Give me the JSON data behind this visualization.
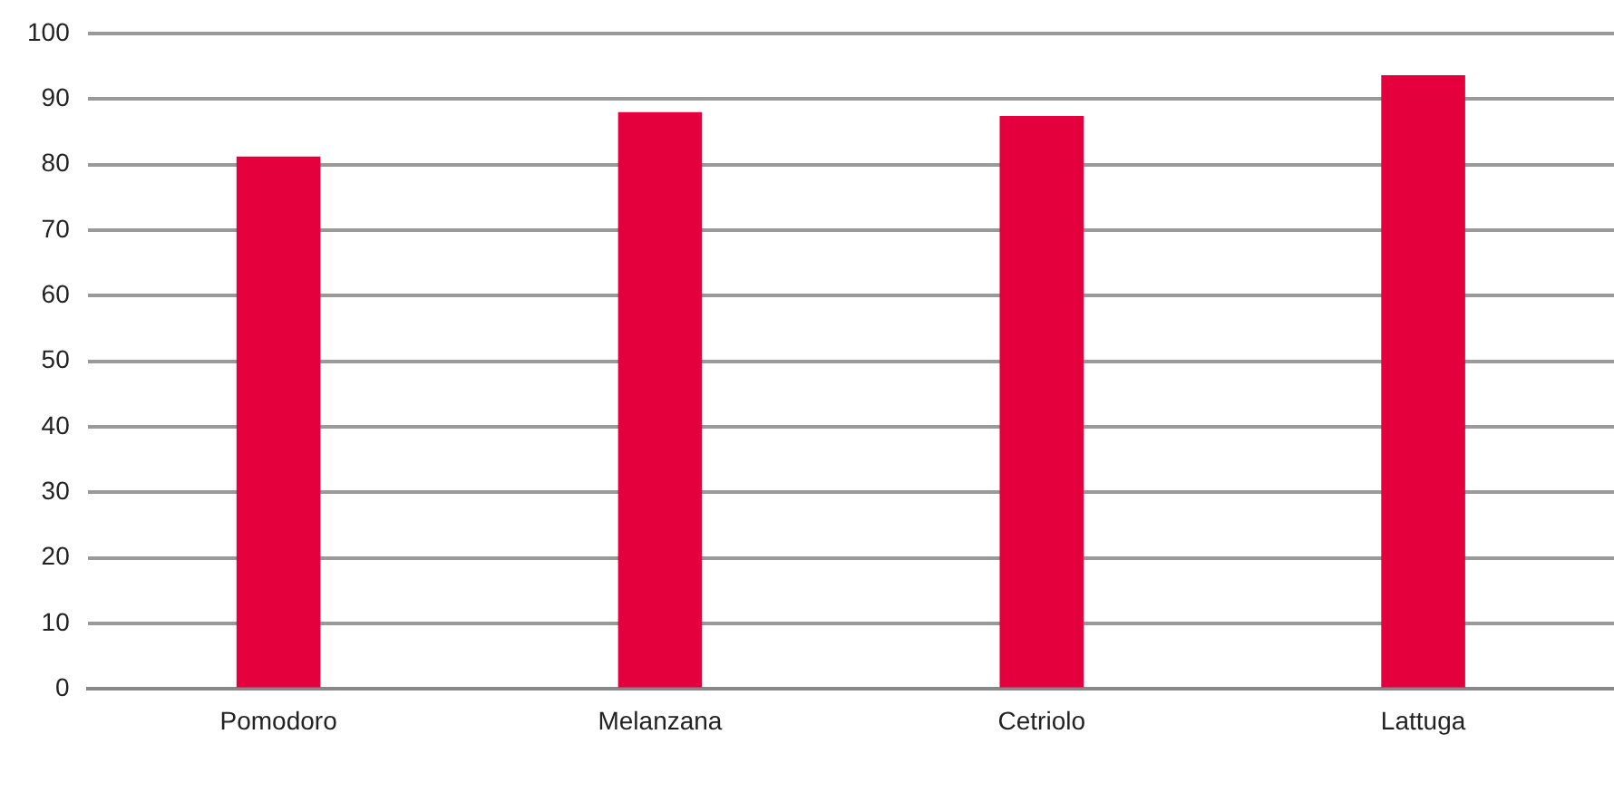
{
  "chart_data": {
    "type": "bar",
    "categories": [
      "Pomodoro",
      "Melanzana",
      "Cetriolo",
      "Lattuga"
    ],
    "values": [
      81.2,
      88.0,
      87.4,
      93.6
    ],
    "color": "#e4003d",
    "ylim": [
      0,
      100
    ],
    "yticks": [
      0,
      10,
      20,
      30,
      40,
      50,
      60,
      70,
      80,
      90,
      100
    ],
    "grid": "y"
  }
}
